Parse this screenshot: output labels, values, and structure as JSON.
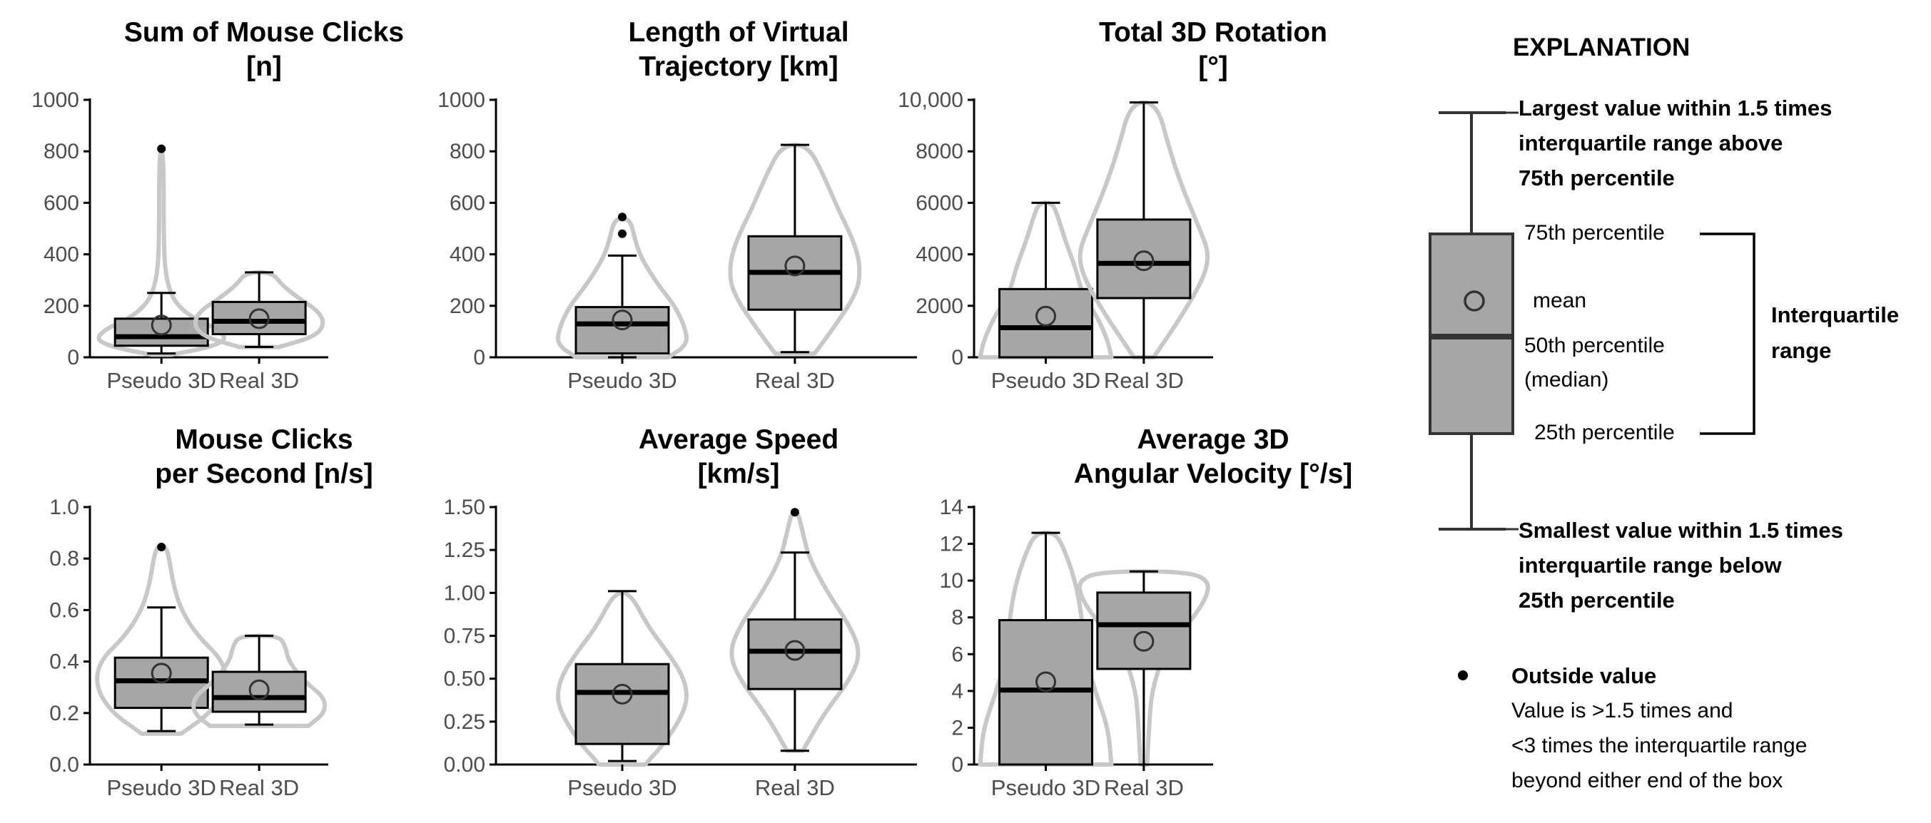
{
  "chart_data": [
    {
      "type": "boxplot",
      "title": [
        "Sum of Mouse Clicks",
        "[n]"
      ],
      "categories": [
        "Pseudo 3D",
        "Real 3D"
      ],
      "ylim": [
        0,
        1000
      ],
      "ticks": [
        0,
        200,
        400,
        600,
        800,
        1000
      ],
      "tick_labels": [
        "0",
        "200",
        "400",
        "600",
        "800",
        "1000"
      ],
      "series": [
        {
          "name": "Pseudo 3D",
          "q1": 45,
          "median": 80,
          "q3": 150,
          "whisker_low": 15,
          "whisker_high": 250,
          "mean": 125,
          "outliers": [
            810
          ],
          "violin": [
            [
              10,
              0.15
            ],
            [
              40,
              0.75
            ],
            [
              70,
              1.0
            ],
            [
              110,
              0.85
            ],
            [
              150,
              0.5
            ],
            [
              200,
              0.25
            ],
            [
              260,
              0.12
            ],
            [
              350,
              0.05
            ],
            [
              500,
              0.035
            ],
            [
              700,
              0.035
            ],
            [
              800,
              0.02
            ]
          ]
        },
        {
          "name": "Real 3D",
          "q1": 90,
          "median": 140,
          "q3": 215,
          "whisker_low": 40,
          "whisker_high": 330,
          "mean": 150,
          "outliers": [],
          "violin": [
            [
              40,
              0.3
            ],
            [
              80,
              0.85
            ],
            [
              130,
              1.0
            ],
            [
              180,
              0.9
            ],
            [
              230,
              0.6
            ],
            [
              280,
              0.35
            ],
            [
              330,
              0.2
            ]
          ]
        }
      ]
    },
    {
      "type": "boxplot",
      "title": [
        "Length of Virtual",
        "Trajectory [km]"
      ],
      "categories": [
        "Pseudo 3D",
        "Real 3D"
      ],
      "ylim": [
        0,
        1000
      ],
      "ticks": [
        0,
        200,
        400,
        600,
        800,
        1000
      ],
      "tick_labels": [
        "0",
        "200",
        "400",
        "600",
        "800",
        "1000"
      ],
      "series": [
        {
          "name": "Pseudo 3D",
          "q1": 15,
          "median": 130,
          "q3": 195,
          "whisker_low": 0,
          "whisker_high": 395,
          "mean": 145,
          "outliers": [
            480,
            545
          ],
          "violin": [
            [
              0,
              0.7
            ],
            [
              50,
              1.0
            ],
            [
              120,
              0.95
            ],
            [
              200,
              0.8
            ],
            [
              280,
              0.55
            ],
            [
              380,
              0.3
            ],
            [
              450,
              0.2
            ],
            [
              540,
              0.12
            ]
          ]
        },
        {
          "name": "Real 3D",
          "q1": 185,
          "median": 330,
          "q3": 470,
          "whisker_low": 20,
          "whisker_high": 825,
          "mean": 355,
          "outliers": [],
          "violin": [
            [
              15,
              0.3
            ],
            [
              100,
              0.55
            ],
            [
              250,
              0.95
            ],
            [
              350,
              1.0
            ],
            [
              450,
              0.9
            ],
            [
              580,
              0.65
            ],
            [
              700,
              0.45
            ],
            [
              825,
              0.2
            ]
          ]
        }
      ]
    },
    {
      "type": "boxplot",
      "title": [
        "Total 3D Rotation",
        "[°]"
      ],
      "categories": [
        "Pseudo 3D",
        "Real 3D"
      ],
      "ylim": [
        0,
        10000
      ],
      "ticks": [
        0,
        2000,
        4000,
        6000,
        8000,
        10000
      ],
      "tick_labels": [
        "0",
        "2000",
        "4000",
        "6000",
        "8000",
        "10,000"
      ],
      "series": [
        {
          "name": "Pseudo 3D",
          "q1": 0,
          "median": 1150,
          "q3": 2650,
          "whisker_low": 0,
          "whisker_high": 6000,
          "mean": 1600,
          "outliers": [],
          "violin": [
            [
              0,
              1.0
            ],
            [
              600,
              0.95
            ],
            [
              1500,
              0.8
            ],
            [
              2500,
              0.55
            ],
            [
              3500,
              0.45
            ],
            [
              4500,
              0.3
            ],
            [
              5500,
              0.18
            ],
            [
              6000,
              0.1
            ]
          ]
        },
        {
          "name": "Real 3D",
          "q1": 2300,
          "median": 3650,
          "q3": 5350,
          "whisker_low": 0,
          "whisker_high": 9900,
          "mean": 3750,
          "outliers": [],
          "violin": [
            [
              0,
              0.15
            ],
            [
              1500,
              0.55
            ],
            [
              3000,
              0.9
            ],
            [
              4000,
              1.0
            ],
            [
              5000,
              0.85
            ],
            [
              6500,
              0.6
            ],
            [
              8000,
              0.4
            ],
            [
              9900,
              0.2
            ]
          ]
        }
      ]
    },
    {
      "type": "boxplot",
      "title": [
        "Mouse Clicks",
        "per Second [n/s]"
      ],
      "categories": [
        "Pseudo 3D",
        "Real 3D"
      ],
      "ylim": [
        0,
        1.0
      ],
      "ticks": [
        0,
        0.2,
        0.4,
        0.6,
        0.8,
        1.0
      ],
      "tick_labels": [
        "0.0",
        "0.2",
        "0.4",
        "0.6",
        "0.8",
        "1.0"
      ],
      "series": [
        {
          "name": "Pseudo 3D",
          "q1": 0.22,
          "median": 0.325,
          "q3": 0.415,
          "whisker_low": 0.13,
          "whisker_high": 0.61,
          "mean": 0.355,
          "outliers": [
            0.845
          ],
          "violin": [
            [
              0.12,
              0.3
            ],
            [
              0.2,
              0.75
            ],
            [
              0.3,
              1.0
            ],
            [
              0.4,
              0.95
            ],
            [
              0.5,
              0.55
            ],
            [
              0.6,
              0.3
            ],
            [
              0.7,
              0.18
            ],
            [
              0.8,
              0.12
            ],
            [
              0.85,
              0.06
            ]
          ]
        },
        {
          "name": "Real 3D",
          "q1": 0.205,
          "median": 0.26,
          "q3": 0.36,
          "whisker_low": 0.155,
          "whisker_high": 0.5,
          "mean": 0.29,
          "outliers": [],
          "violin": [
            [
              0.15,
              0.75
            ],
            [
              0.2,
              1.0
            ],
            [
              0.26,
              1.0
            ],
            [
              0.32,
              0.7
            ],
            [
              0.4,
              0.45
            ],
            [
              0.46,
              0.4
            ],
            [
              0.5,
              0.3
            ]
          ]
        }
      ]
    },
    {
      "type": "boxplot",
      "title": [
        "Average Speed",
        "[km/s]"
      ],
      "categories": [
        "Pseudo 3D",
        "Real 3D"
      ],
      "ylim": [
        0,
        1.5
      ],
      "ticks": [
        0,
        0.25,
        0.5,
        0.75,
        1.0,
        1.25,
        1.5
      ],
      "tick_labels": [
        "0.00",
        "0.25",
        "0.50",
        "0.75",
        "1.00",
        "1.25",
        "1.50"
      ],
      "series": [
        {
          "name": "Pseudo 3D",
          "q1": 0.12,
          "median": 0.42,
          "q3": 0.585,
          "whisker_low": 0.02,
          "whisker_high": 1.01,
          "mean": 0.41,
          "outliers": [],
          "violin": [
            [
              0.0,
              0.35
            ],
            [
              0.15,
              0.7
            ],
            [
              0.35,
              1.0
            ],
            [
              0.5,
              0.95
            ],
            [
              0.65,
              0.7
            ],
            [
              0.8,
              0.4
            ],
            [
              1.0,
              0.12
            ]
          ]
        },
        {
          "name": "Real 3D",
          "q1": 0.44,
          "median": 0.66,
          "q3": 0.845,
          "whisker_low": 0.08,
          "whisker_high": 1.235,
          "mean": 0.665,
          "outliers": [
            1.47
          ],
          "violin": [
            [
              0.08,
              0.12
            ],
            [
              0.3,
              0.45
            ],
            [
              0.5,
              0.85
            ],
            [
              0.65,
              1.0
            ],
            [
              0.8,
              0.85
            ],
            [
              1.0,
              0.5
            ],
            [
              1.2,
              0.22
            ],
            [
              1.35,
              0.12
            ],
            [
              1.47,
              0.05
            ]
          ]
        }
      ]
    },
    {
      "type": "boxplot",
      "title": [
        "Average 3D",
        "Angular Velocity [°/s]"
      ],
      "categories": [
        "Pseudo 3D",
        "Real 3D"
      ],
      "ylim": [
        0,
        14
      ],
      "ticks": [
        0,
        2,
        4,
        6,
        8,
        10,
        12,
        14
      ],
      "tick_labels": [
        "0",
        "2",
        "4",
        "6",
        "8",
        "10",
        "12",
        "14"
      ],
      "series": [
        {
          "name": "Pseudo 3D",
          "q1": 0,
          "median": 4.05,
          "q3": 7.85,
          "whisker_low": 0,
          "whisker_high": 12.6,
          "mean": 4.5,
          "outliers": [],
          "violin": [
            [
              0,
              1.0
            ],
            [
              2,
              0.95
            ],
            [
              4,
              0.75
            ],
            [
              6,
              0.6
            ],
            [
              8,
              0.55
            ],
            [
              10,
              0.45
            ],
            [
              12,
              0.25
            ],
            [
              12.6,
              0.12
            ]
          ]
        },
        {
          "name": "Real 3D",
          "q1": 5.2,
          "median": 7.6,
          "q3": 9.35,
          "whisker_low": 0,
          "whisker_high": 10.5,
          "mean": 6.7,
          "outliers": [],
          "violin": [
            [
              0,
              0.05
            ],
            [
              2,
              0.08
            ],
            [
              4,
              0.12
            ],
            [
              6,
              0.3
            ],
            [
              7.5,
              0.65
            ],
            [
              9,
              0.95
            ],
            [
              10,
              1.0
            ],
            [
              10.5,
              0.65
            ]
          ]
        }
      ]
    }
  ],
  "legend": {
    "heading": "EXPLANATION",
    "largest": [
      "Largest value within 1.5 times",
      "interquartile range above",
      "75th percentile"
    ],
    "p75": "75th percentile",
    "mean": "mean",
    "p50": [
      "50th percentile",
      "(median)"
    ],
    "p25": "25th percentile",
    "iqr": [
      "Interquartile",
      "range"
    ],
    "smallest": [
      "Smallest value within 1.5 times",
      "interquartile range below",
      "25th percentile"
    ],
    "outside_title": "Outside value",
    "outside_desc": [
      "Value is >1.5 times and",
      "<3 times the interquartile range",
      "beyond either end of the box"
    ]
  }
}
